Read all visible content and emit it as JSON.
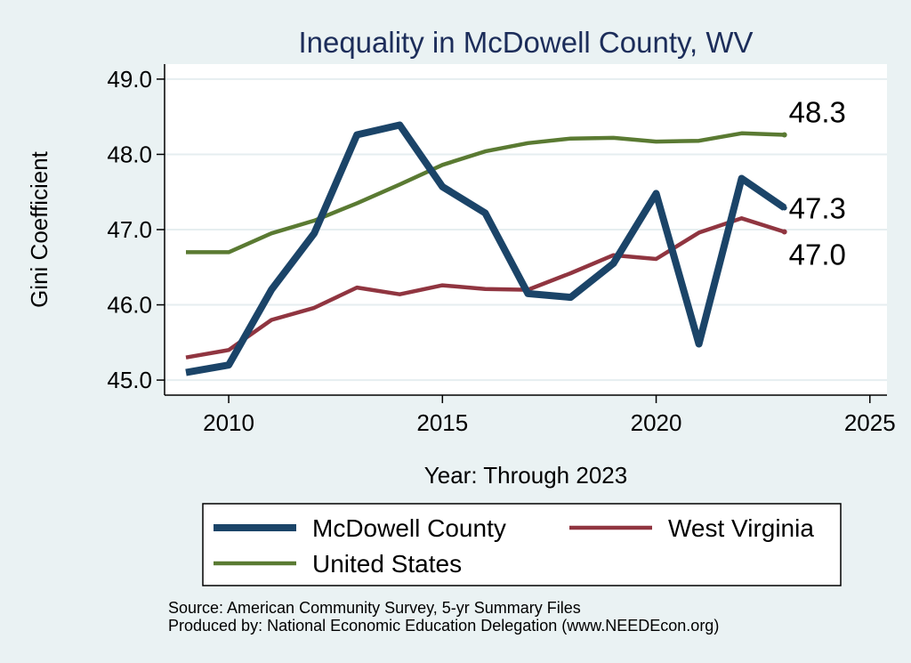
{
  "chart_data": {
    "type": "line",
    "title": "Inequality in McDowell County, WV",
    "xlabel": "Year: Through 2023",
    "ylabel": "Gini Coefficient",
    "xlim": [
      2008.5,
      2025.4
    ],
    "ylim": [
      44.8,
      49.2
    ],
    "x_ticks": [
      2010,
      2015,
      2020,
      2025
    ],
    "x_tick_labels": [
      "2010",
      "2015",
      "2020",
      "2025"
    ],
    "y_ticks": [
      45,
      46,
      47,
      48,
      49
    ],
    "y_tick_labels": [
      "45.0",
      "46.0",
      "47.0",
      "48.0",
      "49.0"
    ],
    "grid": true,
    "x": [
      2009,
      2010,
      2011,
      2012,
      2013,
      2014,
      2015,
      2016,
      2017,
      2018,
      2019,
      2020,
      2021,
      2022,
      2023
    ],
    "series": [
      {
        "name": "McDowell County",
        "color": "#1b4468",
        "values": [
          45.1,
          45.2,
          46.2,
          46.95,
          48.26,
          48.39,
          47.57,
          47.22,
          46.15,
          46.1,
          46.55,
          47.48,
          45.48,
          47.68,
          47.29
        ],
        "end_label": "47.3"
      },
      {
        "name": "West Virginia",
        "color": "#903540",
        "values": [
          45.3,
          45.4,
          45.8,
          45.96,
          46.23,
          46.14,
          46.26,
          46.21,
          46.2,
          46.42,
          46.66,
          46.61,
          46.96,
          47.15,
          46.97
        ],
        "end_label": "47.0"
      },
      {
        "name": "United States",
        "color": "#5a7a32",
        "values": [
          46.7,
          46.7,
          46.95,
          47.12,
          47.35,
          47.6,
          47.86,
          48.04,
          48.15,
          48.21,
          48.22,
          48.17,
          48.18,
          48.28,
          48.26
        ],
        "end_label": "48.3"
      }
    ],
    "legend_position": "bottom",
    "source_lines": [
      "Source: American Community Survey, 5-yr Summary Files",
      "Produced by: National Economic Education Delegation (www.NEEDEcon.org)"
    ]
  }
}
